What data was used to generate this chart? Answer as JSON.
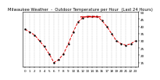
{
  "title": "Milwaukee Weather  -  Outdoor Temperature per Hour  (Last 24 Hours)",
  "hours": [
    0,
    1,
    2,
    3,
    4,
    5,
    6,
    7,
    8,
    9,
    10,
    11,
    12,
    13,
    14,
    15,
    16,
    17,
    18,
    19,
    20,
    21,
    22,
    23
  ],
  "temps": [
    38,
    36,
    34,
    30,
    26,
    21,
    15,
    17,
    21,
    28,
    36,
    43,
    46,
    47,
    47,
    47,
    44,
    40,
    35,
    30,
    28,
    27,
    28,
    30
  ],
  "line_color": "#dd0000",
  "marker_color": "#000000",
  "bg_color": "#ffffff",
  "plot_bg": "#ffffff",
  "grid_color": "#aaaaaa",
  "text_color": "#000000",
  "spine_color": "#000000",
  "ylim": [
    12,
    50
  ],
  "ytick_values": [
    15,
    20,
    25,
    30,
    35,
    40,
    45,
    50
  ],
  "title_fontsize": 3.8,
  "tick_fontsize": 3.0,
  "line_width": 0.7,
  "marker_size": 1.5
}
